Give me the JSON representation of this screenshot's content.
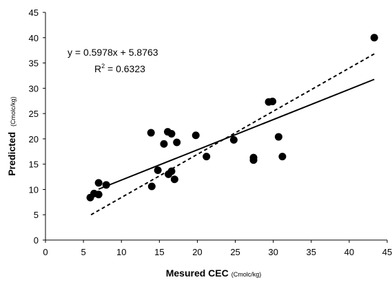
{
  "chart_data": {
    "type": "scatter",
    "xlabel": "Mesured CEC",
    "xlabel_unit": "(Cmolc/kg)",
    "ylabel": "Predicted",
    "ylabel_unit": "(Cmolc/kg)",
    "xlim": [
      0,
      45
    ],
    "ylim": [
      0,
      45
    ],
    "xticks": [
      0,
      5,
      10,
      15,
      20,
      25,
      30,
      35,
      40,
      45
    ],
    "yticks": [
      0,
      5,
      10,
      15,
      20,
      25,
      30,
      35,
      40,
      45
    ],
    "grid": false,
    "legend": "none",
    "point_color": "#000000",
    "equation": "y = 0.5978x + 5.8763",
    "r2_prefix": "R",
    "r2_sup": "2",
    "r2_value": " = 0.6323",
    "regression_line": {
      "slope": 0.5978,
      "intercept": 5.8763,
      "x_range": [
        7.0,
        43.3
      ],
      "style": "solid"
    },
    "identity_line": {
      "x_range": [
        6.0,
        43.3
      ],
      "style": "dashed"
    },
    "points": [
      {
        "x": 5.9,
        "y": 8.4
      },
      {
        "x": 6.4,
        "y": 9.2
      },
      {
        "x": 7.0,
        "y": 11.3
      },
      {
        "x": 7.0,
        "y": 9.0
      },
      {
        "x": 8.0,
        "y": 10.9
      },
      {
        "x": 13.9,
        "y": 21.2
      },
      {
        "x": 14.0,
        "y": 10.6
      },
      {
        "x": 14.8,
        "y": 13.8
      },
      {
        "x": 15.6,
        "y": 19.0
      },
      {
        "x": 16.1,
        "y": 21.4
      },
      {
        "x": 16.2,
        "y": 13.0
      },
      {
        "x": 16.6,
        "y": 13.6
      },
      {
        "x": 16.6,
        "y": 21.0
      },
      {
        "x": 17.0,
        "y": 12.0
      },
      {
        "x": 17.3,
        "y": 19.3
      },
      {
        "x": 19.8,
        "y": 20.7
      },
      {
        "x": 21.2,
        "y": 16.5
      },
      {
        "x": 24.8,
        "y": 19.8
      },
      {
        "x": 27.4,
        "y": 16.3
      },
      {
        "x": 27.4,
        "y": 15.8
      },
      {
        "x": 29.4,
        "y": 27.3
      },
      {
        "x": 29.9,
        "y": 27.4
      },
      {
        "x": 30.7,
        "y": 20.4
      },
      {
        "x": 31.2,
        "y": 16.5
      },
      {
        "x": 43.3,
        "y": 40.0
      }
    ]
  }
}
